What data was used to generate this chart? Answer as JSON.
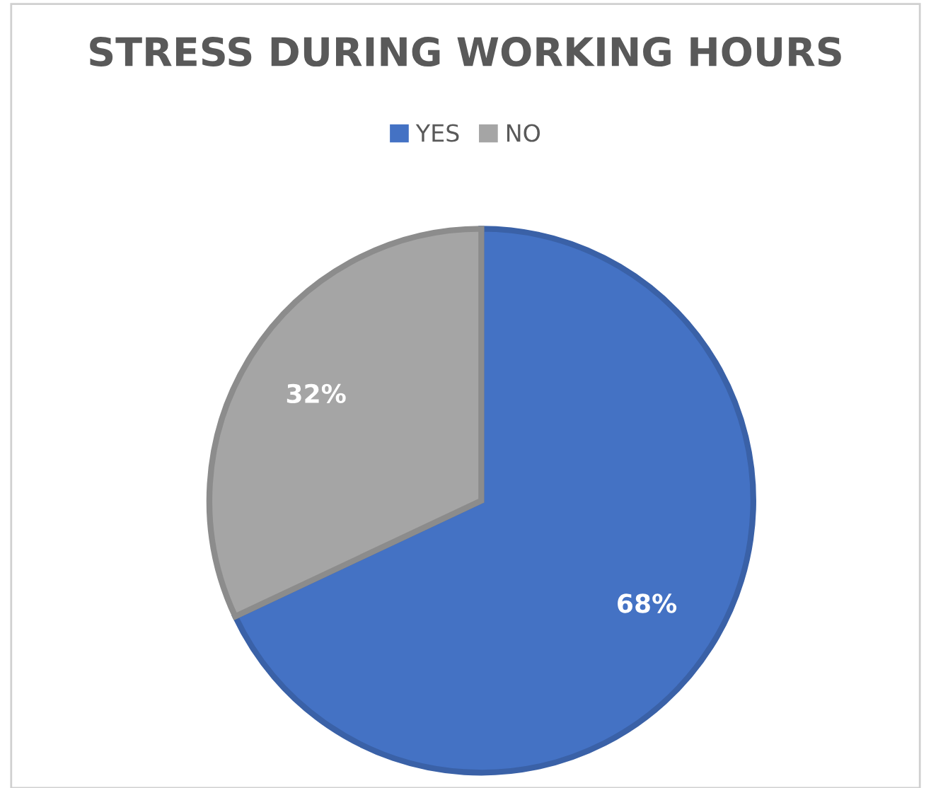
{
  "chart_data": {
    "type": "pie",
    "title": "STRESS DURING WORKING HOURS",
    "categories": [
      "YES",
      "NO"
    ],
    "values": [
      68,
      32
    ],
    "colors": [
      "#4472c4",
      "#a5a5a5"
    ],
    "value_labels": [
      "68%",
      "32%"
    ],
    "legend": "top"
  }
}
